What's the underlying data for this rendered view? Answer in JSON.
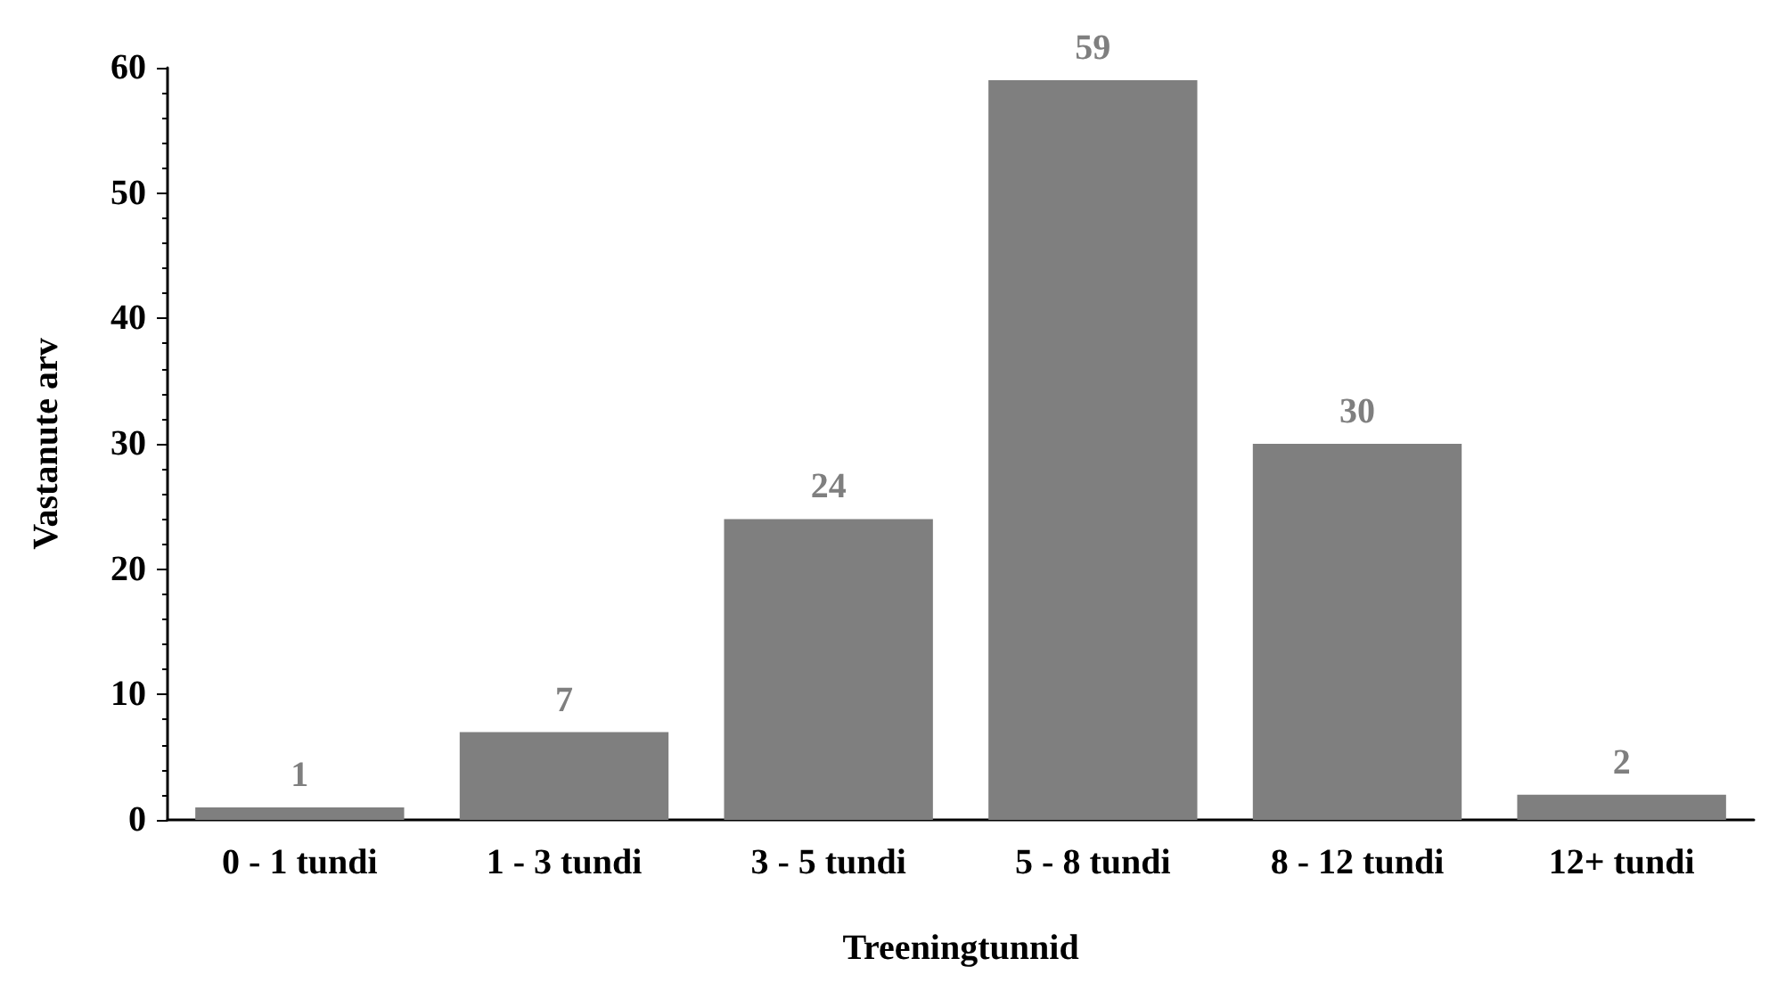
{
  "chart_data": {
    "type": "bar",
    "xlabel": "Treeningtunnid",
    "ylabel": "Vastanute arv",
    "categories": [
      "0 - 1 tundi",
      "1 - 3 tundi",
      "3 - 5 tundi",
      "5 - 8 tundi",
      "8 - 12 tundi",
      "12+ tundi"
    ],
    "values": [
      1,
      7,
      24,
      59,
      30,
      2
    ],
    "color": "#7f7f7f",
    "ylim": [
      0,
      60
    ],
    "yticks": [
      0,
      10,
      20,
      30,
      40,
      50,
      60
    ],
    "grid": false,
    "data_labels": true
  }
}
